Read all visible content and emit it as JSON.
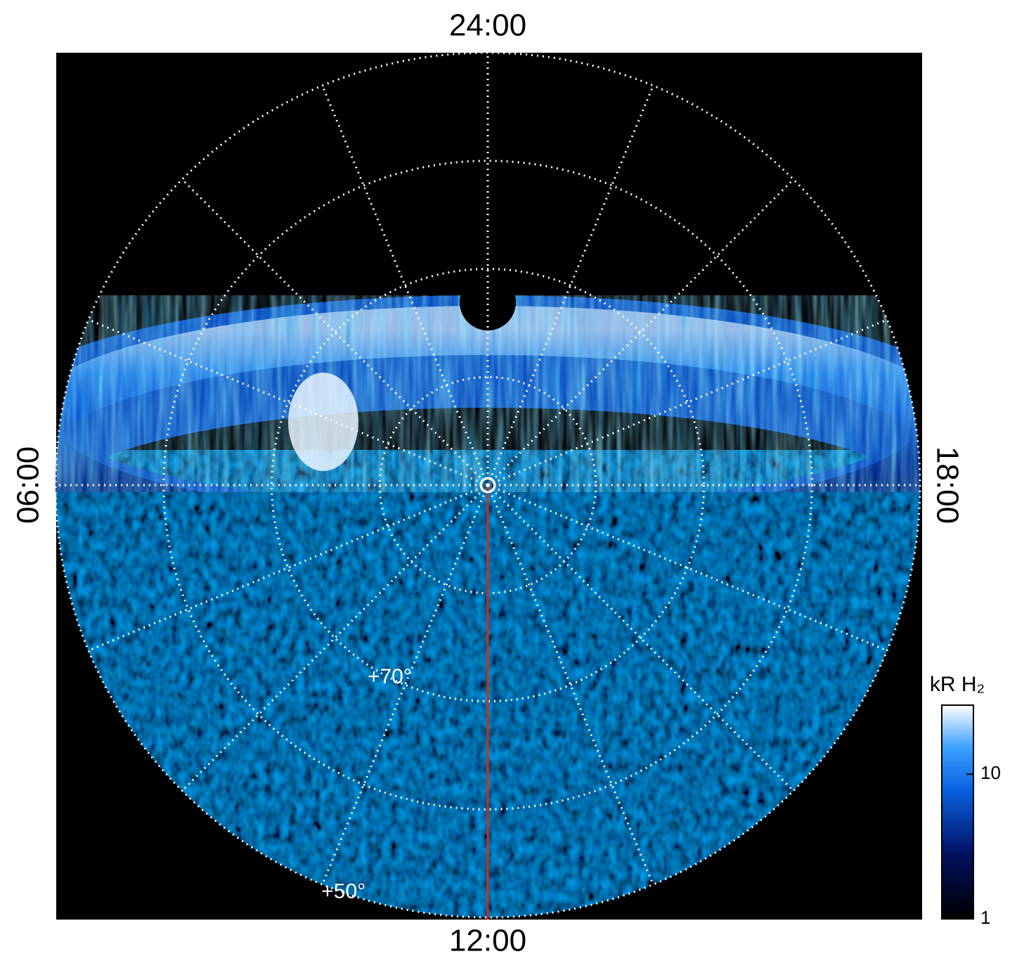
{
  "chart_data": {
    "type": "polar-map",
    "center_label": null,
    "lt_ticks": [
      {
        "value": 0,
        "label": "24:00"
      },
      {
        "value": 1.5,
        "label": null
      },
      {
        "value": 3,
        "label": null
      },
      {
        "value": 4.5,
        "label": null
      },
      {
        "value": 6,
        "label": "06:00"
      },
      {
        "value": 7.5,
        "label": null
      },
      {
        "value": 9,
        "label": null
      },
      {
        "value": 10.5,
        "label": null
      },
      {
        "value": 12,
        "label": "12:00"
      },
      {
        "value": 13.5,
        "label": null
      },
      {
        "value": 15,
        "label": null
      },
      {
        "value": 16.5,
        "label": null
      },
      {
        "value": 18,
        "label": "18:00"
      },
      {
        "value": 19.5,
        "label": null
      },
      {
        "value": 21,
        "label": null
      },
      {
        "value": 22.5,
        "label": null
      }
    ],
    "rlim": [
      90,
      50
    ],
    "lat_ticks": [
      {
        "value": 80,
        "label": null
      },
      {
        "value": 70,
        "label": "+70°"
      },
      {
        "value": 60,
        "label": null
      },
      {
        "value": 50,
        "label": "+50°"
      }
    ],
    "colorbar": {
      "label": "kR H₂",
      "scale": "log",
      "lim": [
        1,
        30
      ],
      "ticks": [
        1,
        10
      ]
    }
  }
}
